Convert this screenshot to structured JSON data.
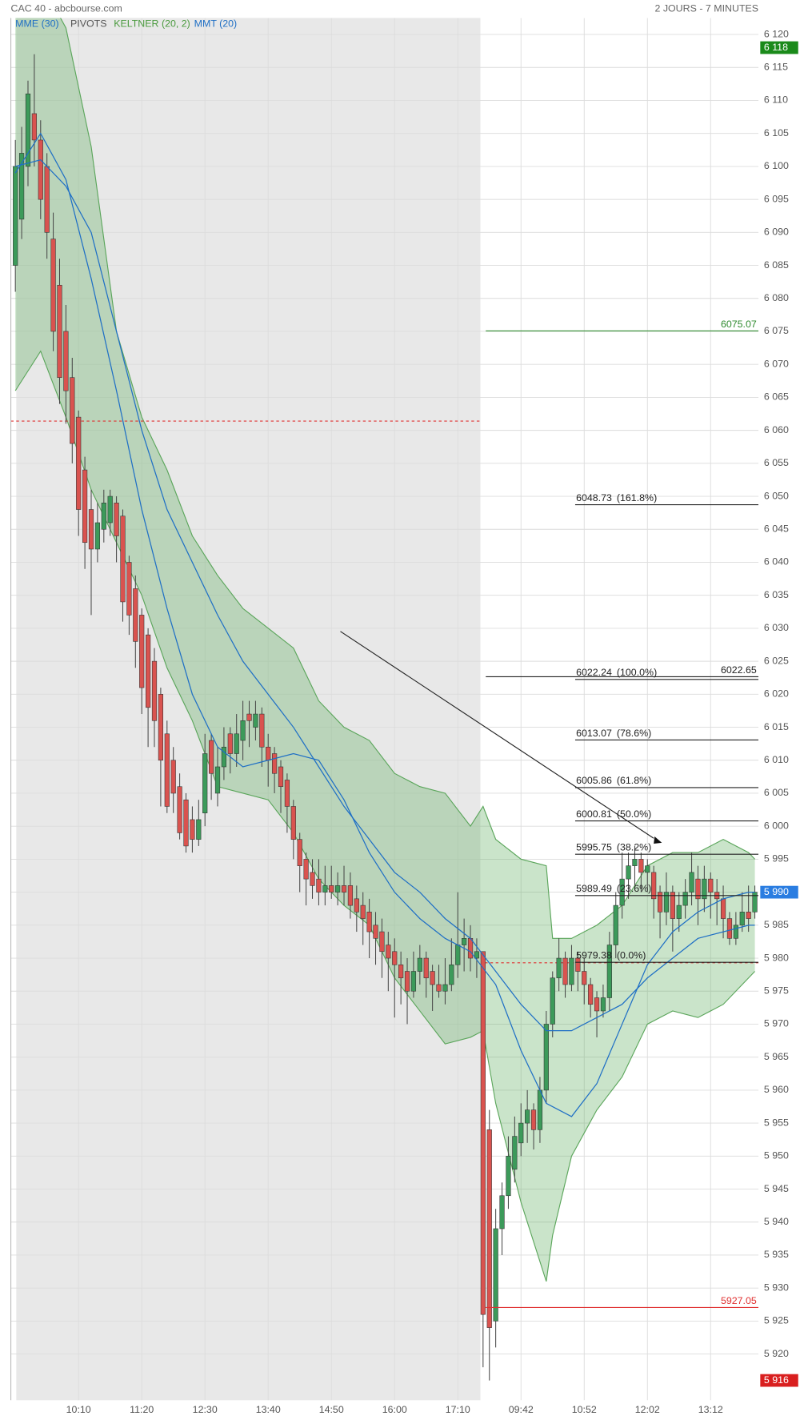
{
  "chart_data": {
    "type": "candlestick",
    "title": "CAC 40 - abcbourse.com",
    "period": "2 JOURS - 7 MINUTES",
    "legend": [
      {
        "name": "MME (30)",
        "color": "#1f6fc5"
      },
      {
        "name": "PIVOTS",
        "color": "#555555"
      },
      {
        "name": "KELTNER (20, 2)",
        "color": "#4a9a3e"
      },
      {
        "name": "MMT (20)",
        "color": "#1f6fc5"
      }
    ],
    "up_color": "#3c9a5a",
    "down_color": "#d9534f",
    "ylim": [
      5913,
      6122.5
    ],
    "yticks": [
      {
        "value": 6120,
        "label": "6 120"
      },
      {
        "value": 6115,
        "label": "6 115"
      },
      {
        "value": 6110,
        "label": "6 110"
      },
      {
        "value": 6105,
        "label": "6 105"
      },
      {
        "value": 6100,
        "label": "6 100"
      },
      {
        "value": 6095,
        "label": "6 095"
      },
      {
        "value": 6090,
        "label": "6 090"
      },
      {
        "value": 6085,
        "label": "6 085"
      },
      {
        "value": 6080,
        "label": "6 080"
      },
      {
        "value": 6075,
        "label": "6 075"
      },
      {
        "value": 6070,
        "label": "6 070"
      },
      {
        "value": 6065,
        "label": "6 065"
      },
      {
        "value": 6060,
        "label": "6 060"
      },
      {
        "value": 6055,
        "label": "6 055"
      },
      {
        "value": 6050,
        "label": "6 050"
      },
      {
        "value": 6045,
        "label": "6 045"
      },
      {
        "value": 6040,
        "label": "6 040"
      },
      {
        "value": 6035,
        "label": "6 035"
      },
      {
        "value": 6030,
        "label": "6 030"
      },
      {
        "value": 6025,
        "label": "6 025"
      },
      {
        "value": 6020,
        "label": "6 020"
      },
      {
        "value": 6015,
        "label": "6 015"
      },
      {
        "value": 6010,
        "label": "6 010"
      },
      {
        "value": 6005,
        "label": "6 005"
      },
      {
        "value": 6000,
        "label": "6 000"
      },
      {
        "value": 5995,
        "label": "5 995"
      },
      {
        "value": 5990,
        "label": "5 990"
      },
      {
        "value": 5985,
        "label": "5 985"
      },
      {
        "value": 5980,
        "label": "5 980"
      },
      {
        "value": 5975,
        "label": "5 975"
      },
      {
        "value": 5970,
        "label": "5 970"
      },
      {
        "value": 5965,
        "label": "5 965"
      },
      {
        "value": 5960,
        "label": "5 960"
      },
      {
        "value": 5955,
        "label": "5 955"
      },
      {
        "value": 5950,
        "label": "5 950"
      },
      {
        "value": 5945,
        "label": "5 945"
      },
      {
        "value": 5940,
        "label": "5 940"
      },
      {
        "value": 5935,
        "label": "5 935"
      },
      {
        "value": 5930,
        "label": "5 930"
      },
      {
        "value": 5925,
        "label": "5 925"
      },
      {
        "value": 5920,
        "label": "5 920"
      }
    ],
    "xticks": [
      {
        "value": 10,
        "label": "10:10"
      },
      {
        "value": 20,
        "label": "11:20"
      },
      {
        "value": 30,
        "label": "12:30"
      },
      {
        "value": 40,
        "label": "13:40"
      },
      {
        "value": 50,
        "label": "14:50"
      },
      {
        "value": 60,
        "label": "16:00"
      },
      {
        "value": 70,
        "label": "17:10"
      },
      {
        "value": 80,
        "label": "09:42"
      },
      {
        "value": 90,
        "label": "10:52"
      },
      {
        "value": 100,
        "label": "12:02"
      },
      {
        "value": 110,
        "label": "13:12"
      }
    ],
    "candles": [
      [
        6085,
        6104,
        6081,
        6100
      ],
      [
        6092,
        6106,
        6089,
        6102
      ],
      [
        6100,
        6113,
        6097,
        6111
      ],
      [
        6108,
        6117,
        6100,
        6104
      ],
      [
        6104,
        6107,
        6092,
        6095
      ],
      [
        6100,
        6102,
        6086,
        6090
      ],
      [
        6089,
        6093,
        6072,
        6075
      ],
      [
        6082,
        6086,
        6064,
        6068
      ],
      [
        6075,
        6079,
        6061,
        6066
      ],
      [
        6068,
        6071,
        6055,
        6058
      ],
      [
        6062,
        6063,
        6044,
        6048
      ],
      [
        6054,
        6056,
        6039,
        6043
      ],
      [
        6048,
        6051,
        6032,
        6042
      ],
      [
        6042,
        6049,
        6040,
        6046
      ],
      [
        6045,
        6051,
        6043,
        6049
      ],
      [
        6046,
        6051,
        6044,
        6050
      ],
      [
        6049,
        6050,
        6040,
        6044
      ],
      [
        6047,
        6048,
        6031,
        6034
      ],
      [
        6040,
        6041,
        6029,
        6032
      ],
      [
        6036,
        6038,
        6024,
        6028
      ],
      [
        6032,
        6033,
        6017,
        6021
      ],
      [
        6029,
        6030,
        6012,
        6018
      ],
      [
        6025,
        6027,
        6012,
        6016
      ],
      [
        6020,
        6021,
        6003,
        6010
      ],
      [
        6014,
        6016,
        6002,
        6003
      ],
      [
        6010,
        6012,
        6002,
        6005
      ],
      [
        6006,
        6008,
        5998,
        5999
      ],
      [
        6004,
        6005,
        5996,
        5997
      ],
      [
        6001,
        6003,
        5996,
        5998
      ],
      [
        5998,
        6004,
        5997,
        6001
      ],
      [
        6002,
        6014,
        6000,
        6011
      ],
      [
        6013,
        6014,
        6004,
        6008
      ],
      [
        6005,
        6012,
        6003,
        6009
      ],
      [
        6009,
        6015,
        6007,
        6012
      ],
      [
        6014,
        6015,
        6008,
        6011
      ],
      [
        6011,
        6017,
        6009,
        6014
      ],
      [
        6013,
        6019,
        6010,
        6016
      ],
      [
        6017,
        6019,
        6012,
        6016
      ],
      [
        6015,
        6019,
        6013,
        6017
      ],
      [
        6017,
        6018,
        6009,
        6012
      ],
      [
        6012,
        6014,
        6006,
        6010
      ],
      [
        6011,
        6012,
        6005,
        6008
      ],
      [
        6009,
        6010,
        6002,
        6006
      ],
      [
        6007,
        6008,
        5999,
        6003
      ],
      [
        6003,
        6004,
        5995,
        5998
      ],
      [
        5998,
        5999,
        5990,
        5994
      ],
      [
        5995,
        5996,
        5988,
        5992
      ],
      [
        5993,
        5995,
        5989,
        5991
      ],
      [
        5992,
        5995,
        5988,
        5990
      ],
      [
        5990,
        5994,
        5988,
        5991
      ],
      [
        5991,
        5994,
        5989,
        5990
      ],
      [
        5990,
        5993,
        5988,
        5991
      ],
      [
        5991,
        5994,
        5988,
        5990
      ],
      [
        5991,
        5993,
        5986,
        5988
      ],
      [
        5989,
        5991,
        5984,
        5987
      ],
      [
        5988,
        5990,
        5982,
        5986
      ],
      [
        5987,
        5989,
        5980,
        5984
      ],
      [
        5985,
        5987,
        5979,
        5983
      ],
      [
        5984,
        5986,
        5977,
        5981
      ],
      [
        5982,
        5984,
        5975,
        5980
      ],
      [
        5981,
        5983,
        5971,
        5979
      ],
      [
        5979,
        5981,
        5973,
        5977
      ],
      [
        5978,
        5980,
        5970,
        5975
      ],
      [
        5975,
        5981,
        5974,
        5978
      ],
      [
        5978,
        5982,
        5976,
        5980
      ],
      [
        5980,
        5981,
        5974,
        5977
      ],
      [
        5978,
        5979,
        5972,
        5976
      ],
      [
        5976,
        5979,
        5974,
        5975
      ],
      [
        5975,
        5980,
        5973,
        5976
      ],
      [
        5976,
        5983,
        5975,
        5979
      ],
      [
        5979,
        5990,
        5977,
        5982
      ],
      [
        5982,
        5986,
        5978,
        5983
      ],
      [
        5983,
        5985,
        5978,
        5980
      ],
      [
        5980,
        5983,
        5977,
        5981
      ],
      [
        5981,
        5981,
        5918,
        5926
      ],
      [
        5954,
        5957,
        5916,
        5924
      ],
      [
        5925,
        5942,
        5921,
        5939
      ],
      [
        5939,
        5946,
        5935,
        5944
      ],
      [
        5944,
        5953,
        5942,
        5950
      ],
      [
        5948,
        5956,
        5946,
        5953
      ],
      [
        5952,
        5958,
        5950,
        5955
      ],
      [
        5955,
        5960,
        5952,
        5957
      ],
      [
        5957,
        5958,
        5951,
        5954
      ],
      [
        5954,
        5962,
        5952,
        5960
      ],
      [
        5960,
        5972,
        5958,
        5970
      ],
      [
        5970,
        5978,
        5968,
        5977
      ],
      [
        5977,
        5983,
        5975,
        5980
      ],
      [
        5980,
        5981,
        5974,
        5976
      ],
      [
        5976,
        5982,
        5975,
        5980
      ],
      [
        5980,
        5981,
        5975,
        5978
      ],
      [
        5978,
        5980,
        5973,
        5976
      ],
      [
        5976,
        5977,
        5971,
        5973
      ],
      [
        5974,
        5975,
        5968,
        5972
      ],
      [
        5972,
        5976,
        5971,
        5974
      ],
      [
        5974,
        5984,
        5972,
        5982
      ],
      [
        5982,
        5990,
        5980,
        5988
      ],
      [
        5988,
        5996,
        5986,
        5992
      ],
      [
        5992,
        5996,
        5989,
        5994
      ],
      [
        5994,
        5997,
        5991,
        5995
      ],
      [
        5995,
        5996,
        5990,
        5993
      ],
      [
        5993,
        5995,
        5990,
        5994
      ],
      [
        5993,
        5994,
        5986,
        5989
      ],
      [
        5990,
        5991,
        5983,
        5987
      ],
      [
        5987,
        5993,
        5985,
        5990
      ],
      [
        5990,
        5991,
        5981,
        5986
      ],
      [
        5986,
        5990,
        5984,
        5988
      ],
      [
        5988,
        5992,
        5986,
        5990
      ],
      [
        5990,
        5996,
        5988,
        5993
      ],
      [
        5992,
        5994,
        5985,
        5989
      ],
      [
        5989,
        5994,
        5987,
        5992
      ],
      [
        5992,
        5993,
        5986,
        5990
      ],
      [
        5990,
        5992,
        5985,
        5989
      ],
      [
        5989,
        5991,
        5983,
        5986
      ],
      [
        5986,
        5987,
        5982,
        5983
      ],
      [
        5983,
        5987,
        5982,
        5985
      ],
      [
        5985,
        5990,
        5984,
        5987
      ],
      [
        5987,
        5991,
        5984,
        5986
      ],
      [
        5987,
        5991,
        5986,
        5990
      ]
    ],
    "keltner": {
      "color": "#5aa55a",
      "x": [
        0,
        4,
        8,
        12,
        16,
        20,
        24,
        28,
        32,
        36,
        40,
        44,
        48,
        52,
        56,
        60,
        64,
        68,
        72,
        74,
        76,
        80,
        84,
        85,
        88,
        92,
        96,
        100,
        104,
        108,
        112,
        116,
        117
      ],
      "upper": [
        6135,
        6128,
        6121,
        6103,
        6075,
        6062,
        6054,
        6044,
        6038,
        6033,
        6030,
        6027,
        6019,
        6015,
        6013,
        6008,
        6006,
        6005,
        6000,
        6003,
        5998,
        5995,
        5994,
        5983,
        5983,
        5985,
        5988,
        5994,
        5996,
        5996,
        5998,
        5996,
        5995
      ],
      "lower": [
        6066,
        6072,
        6062,
        6051,
        6043,
        6035,
        6024,
        6016,
        6006,
        6005,
        6004,
        5999,
        5992,
        5988,
        5985,
        5977,
        5972,
        5967,
        5968,
        5969,
        5958,
        5943,
        5931,
        5938,
        5950,
        5957,
        5962,
        5970,
        5972,
        5971,
        5973,
        5977,
        5978
      ]
    },
    "series": [
      {
        "name": "MMT (20)",
        "color": "#1f6fc5",
        "x": [
          0,
          4,
          8,
          12,
          16,
          20,
          24,
          28,
          32,
          36,
          40,
          44,
          48,
          52,
          56,
          60,
          64,
          68,
          72,
          76,
          80,
          84,
          88,
          92,
          96,
          100,
          104,
          108,
          112,
          116,
          117
        ],
        "values": [
          6099,
          6105,
          6098,
          6083,
          6066,
          6048,
          6033,
          6020,
          6012,
          6009,
          6010,
          6011,
          6010,
          6004,
          5996,
          5990,
          5986,
          5983,
          5981,
          5976,
          5966,
          5958,
          5956,
          5961,
          5970,
          5979,
          5984,
          5987,
          5989,
          5990,
          5990
        ]
      },
      {
        "name": "MME (30)",
        "color": "#1f6fc5",
        "x": [
          0,
          4,
          8,
          12,
          16,
          20,
          24,
          28,
          32,
          36,
          40,
          44,
          48,
          52,
          56,
          60,
          64,
          68,
          72,
          76,
          80,
          84,
          88,
          92,
          96,
          100,
          104,
          108,
          112,
          116,
          117
        ],
        "values": [
          6100,
          6101,
          6097,
          6090,
          6075,
          6060,
          6048,
          6040,
          6032,
          6025,
          6020,
          6015,
          6009,
          6003,
          5998,
          5993,
          5990,
          5986,
          5983,
          5978,
          5973,
          5969,
          5969,
          5971,
          5973,
          5977,
          5980,
          5983,
          5984,
          5985,
          5985
        ]
      }
    ],
    "pivots": [
      6061.4,
      5979.3
    ],
    "pivot_color": "#e03030",
    "horizontal_lines": [
      {
        "value": 6075.07,
        "color": "#2e8b2e"
      },
      {
        "value": 6022.65,
        "color": "#222222"
      },
      {
        "value": 5927.05,
        "color": "#e03030"
      }
    ],
    "fibonacci": [
      {
        "value": 6048.73,
        "label": "(161.8%)"
      },
      {
        "value": 6022.24,
        "label": "(100.0%)"
      },
      {
        "value": 6013.07,
        "label": "(78.6%)"
      },
      {
        "value": 6005.86,
        "label": "(61.8%)"
      },
      {
        "value": 6000.81,
        "label": "(50.0%)"
      },
      {
        "value": 5995.75,
        "label": "(38.2%)"
      },
      {
        "value": 5989.49,
        "label": "(23.6%)"
      },
      {
        "value": 5979.38,
        "label": "(0.0%)"
      }
    ],
    "badges": [
      {
        "value": 6118,
        "label": "6 118",
        "color": "#1a8a1a"
      },
      {
        "value": 5990,
        "label": "5 990",
        "color": "#2a7de1"
      },
      {
        "value": 5916,
        "label": "5 916",
        "color": "#d91f1f"
      }
    ]
  }
}
